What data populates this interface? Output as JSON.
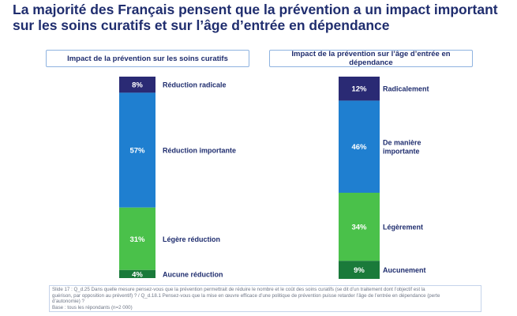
{
  "title": "La majorité des Français pensent que la prévention a un impact important sur les soins curatifs et sur l’âge d’entrée en dépendance",
  "colors": {
    "dark_navy": "#2a2a74",
    "blue": "#1f7fd0",
    "light_green": "#4ac14a",
    "dark_green": "#1a7a3a",
    "title_text": "#1f2d6e"
  },
  "chart_data": [
    {
      "type": "bar",
      "stacked": true,
      "title": "Impact de la prévention sur les soins curatifs",
      "categories": [
        "Réduction radicale",
        "Réduction importante",
        "Légère réduction",
        "Aucune réduction"
      ],
      "values": [
        8,
        57,
        31,
        4
      ],
      "value_labels": [
        "8%",
        "57%",
        "31%",
        "4%"
      ],
      "unit": "%"
    },
    {
      "type": "bar",
      "stacked": true,
      "title": "Impact de la prévention sur l’âge d’entrée en dépendance",
      "categories": [
        "Radicalement",
        "De manière importante",
        "Légèrement",
        "Aucunement"
      ],
      "values": [
        12,
        46,
        34,
        9
      ],
      "value_labels": [
        "12%",
        "46%",
        "34%",
        "9%"
      ],
      "unit": "%"
    }
  ],
  "footnote": {
    "line1": "Slide 17 : Q_d.25 Dans quelle mesure pensez-vous que la prévention permettrait de réduire le nombre et le coût des soins curatifs (se dit d’un traitement dont l’objectif est la",
    "line2": "guérison, par opposition au préventif) ? / Q_d.18.1 Pensez-vous que la mise en œuvre efficace d’une politique de prévention puisse retarder l’âge de l’entrée en dépendance (perte",
    "line3": "d’autonomie) ?",
    "line4": "Base : tous les répondants (n=2 000)"
  }
}
